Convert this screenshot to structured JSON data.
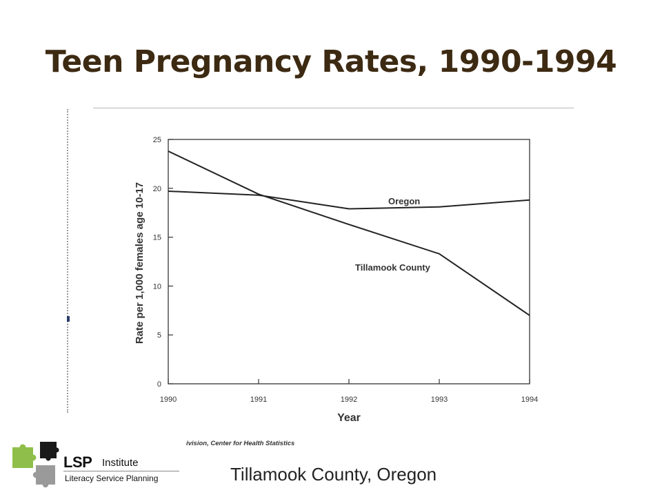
{
  "slide": {
    "title": "Teen Pregnancy Rates, 1990-1994",
    "caption": "Tillamook County, Oregon",
    "source_note": "ivision, Center for Health Statistics",
    "title_color": "#3d2a12"
  },
  "logo": {
    "name": "LSP",
    "suffix": "Institute",
    "tagline": "Literacy Service Planning",
    "colors": [
      "#8fbf4a",
      "#9a9a9a",
      "#1a1a1a"
    ]
  },
  "chart_data": {
    "type": "line",
    "title": "",
    "xlabel": "Year",
    "ylabel": "Rate per 1,000 females age 10-17",
    "x": [
      1990,
      1991,
      1992,
      1993,
      1994
    ],
    "xlim": [
      1990,
      1994
    ],
    "ylim": [
      0,
      25
    ],
    "yticks": [
      0,
      5,
      10,
      15,
      20,
      25
    ],
    "grid": false,
    "legend": "inline labels",
    "series": [
      {
        "name": "Oregon",
        "values": [
          19.7,
          19.3,
          17.9,
          18.1,
          18.8
        ]
      },
      {
        "name": "Tillamook County",
        "values": [
          23.8,
          19.4,
          16.3,
          13.3,
          7.0
        ]
      }
    ]
  }
}
